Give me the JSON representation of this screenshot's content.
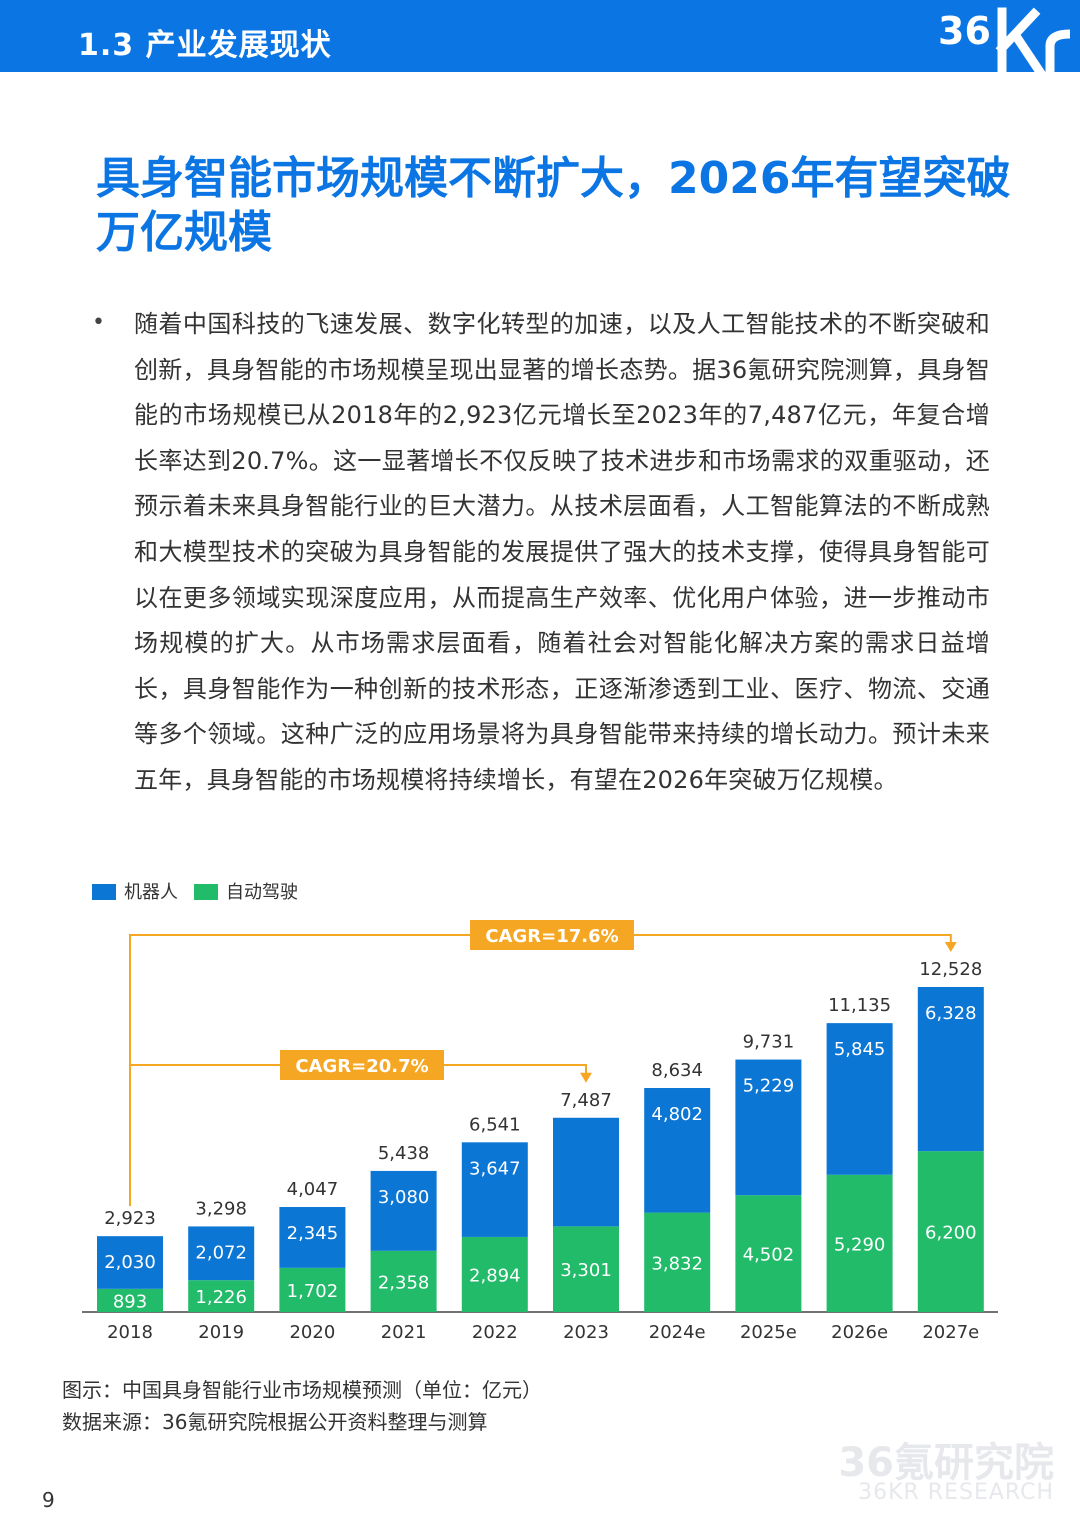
{
  "header": {
    "section_title": "1.3 产业发展现状",
    "logo_text": "36Kr"
  },
  "headline": "具身智能市场规模不断扩大，2026年有望突破万亿规模",
  "bullet_symbol": "•",
  "body_text": "随着中国科技的飞速发展、数字化转型的加速，以及人工智能技术的不断突破和创新，具身智能的市场规模呈现出显著的增长态势。据36氪研究院测算，具身智能的市场规模已从2018年的2,923亿元增长至2023年的7,487亿元，年复合增长率达到20.7%。这一显著增长不仅反映了技术进步和市场需求的双重驱动，还预示着未来具身智能行业的巨大潜力。从技术层面看，人工智能算法的不断成熟和大模型技术的突破为具身智能的发展提供了强大的技术支撑，使得具身智能可以在更多领域实现深度应用，从而提高生产效率、优化用户体验，进一步推动市场规模的扩大。从市场需求层面看，随着社会对智能化解决方案的需求日益增长，具身智能作为一种创新的技术形态，正逐渐渗透到工业、医疗、物流、交通等多个领域。这种广泛的应用场景将为具身智能带来持续的增长动力。预计未来五年，具身智能的市场规模将持续增长，有望在2026年突破万亿规模。",
  "colors": {
    "brand_blue": "#0b76e3",
    "robot_bar": "#0b76d4",
    "auto_bar": "#22bb6a",
    "cagr_box": "#f5a623"
  },
  "chart_data": {
    "type": "bar",
    "stacked": true,
    "categories": [
      "2018",
      "2019",
      "2020",
      "2021",
      "2022",
      "2023",
      "2024e",
      "2025e",
      "2026e",
      "2027e"
    ],
    "series": [
      {
        "name": "自动驾驶",
        "values": [
          893,
          1226,
          1702,
          2358,
          2894,
          3301,
          3832,
          4502,
          5290,
          6200
        ]
      },
      {
        "name": "机器人",
        "values": [
          2030,
          2072,
          2345,
          3080,
          3647,
          4186,
          4802,
          5229,
          5845,
          6328
        ]
      }
    ],
    "series_labels": [
      [
        "893",
        "1,226",
        "1,702",
        "2,358",
        "2,894",
        "3,301",
        "3,832",
        "4,502",
        "5,290",
        "6,200"
      ],
      [
        "2,030",
        "2,072",
        "2,345",
        "3,080",
        "3,647",
        "",
        "4,802",
        "5,229",
        "5,845",
        "6,328"
      ]
    ],
    "totals": [
      2923,
      3298,
      4047,
      5438,
      6541,
      7487,
      8634,
      9731,
      11135,
      12528
    ],
    "total_labels": [
      "2,923",
      "3,298",
      "4,047",
      "5,438",
      "6,541",
      "7,487",
      "8,634",
      "9,731",
      "11,135",
      "12,528"
    ],
    "legend": [
      "机器人",
      "自动驾驶"
    ],
    "legend_position": "top-left",
    "ylim": [
      0,
      13500
    ],
    "annotations": [
      {
        "text": "CAGR=20.7%",
        "from": "2018",
        "to": "2023"
      },
      {
        "text": "CAGR=17.6%",
        "from": "2018",
        "to": "2027e"
      }
    ],
    "title": "",
    "xlabel": "",
    "ylabel": ""
  },
  "caption": {
    "figure": "图示：中国具身智能行业市场规模预测（单位：亿元）",
    "source": "数据来源：36氪研究院根据公开资料整理与测算"
  },
  "watermark": {
    "cn": "36氪研究院",
    "en": "36KR RESEARCH"
  },
  "page_number": "9"
}
